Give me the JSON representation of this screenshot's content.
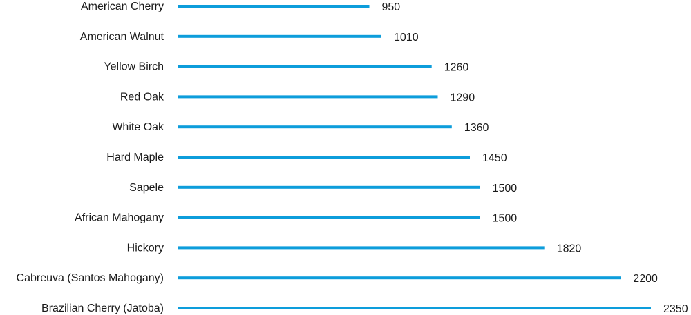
{
  "chart_data": {
    "type": "bar",
    "orientation": "horizontal",
    "title": "",
    "xlabel": "",
    "ylabel": "",
    "categories": [
      "American Cherry",
      "American Walnut",
      "Yellow Birch",
      "Red Oak",
      "White Oak",
      "Hard Maple",
      "Sapele",
      "African Mahogany",
      "Hickory",
      "Cabreuva (Santos Mahogany)",
      "Brazilian Cherry (Jatoba)"
    ],
    "values": [
      950,
      1010,
      1260,
      1290,
      1360,
      1450,
      1500,
      1500,
      1820,
      2200,
      2350
    ],
    "value_labels": [
      "950",
      "1010",
      "1260",
      "1290",
      "1360",
      "1450",
      "1500",
      "1500",
      "1820",
      "2200",
      "2350"
    ],
    "xlim": [
      0,
      2350
    ],
    "grid": false,
    "legend": "none",
    "bar_color": "#0d9ddb",
    "text_color": "#1a1a1a"
  }
}
